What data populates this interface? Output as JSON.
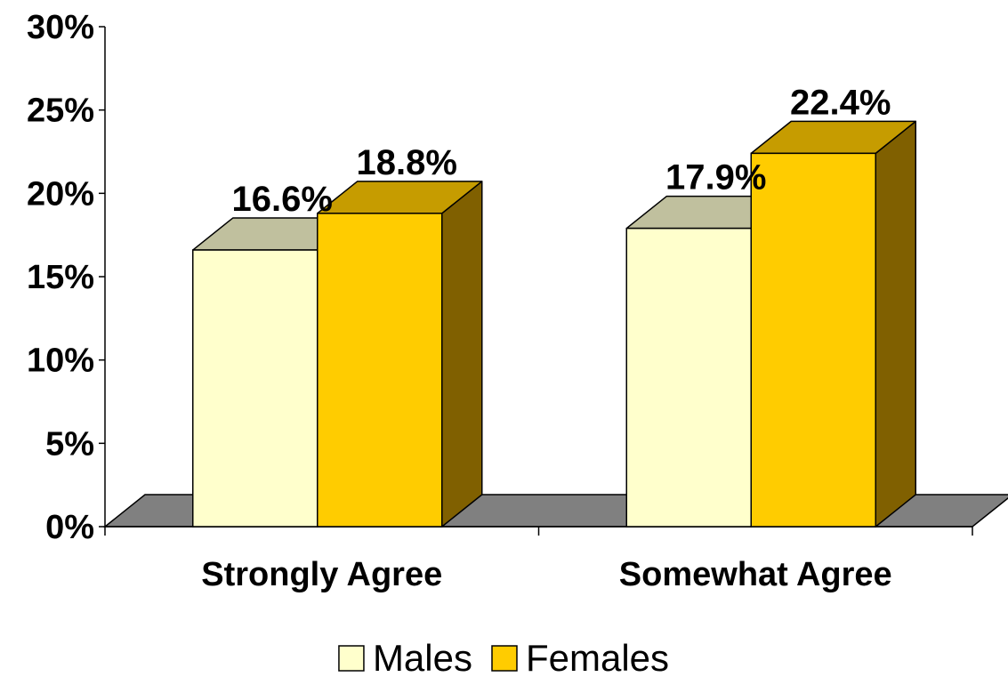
{
  "chart_data": {
    "type": "bar",
    "style": "3d-clustered",
    "categories": [
      "Strongly Agree",
      "Somewhat Agree"
    ],
    "series": [
      {
        "name": "Males",
        "values": [
          16.6,
          17.9
        ],
        "labels": [
          "16.6%",
          "17.9%"
        ],
        "color_front": "#FFFFCC",
        "color_top": "#C0C09E",
        "color_side": "#8A8A70"
      },
      {
        "name": "Females",
        "values": [
          18.8,
          22.4
        ],
        "labels": [
          "18.8%",
          "22.4%"
        ],
        "color_front": "#FFCC00",
        "color_top": "#C69C00",
        "color_side": "#806000"
      }
    ],
    "yticks": [
      "0%",
      "5%",
      "10%",
      "15%",
      "20%",
      "25%",
      "30%"
    ],
    "ylim": [
      0,
      30
    ],
    "floor_color": "#808080",
    "legend_position": "bottom",
    "title": "",
    "xlabel": "",
    "ylabel": ""
  }
}
